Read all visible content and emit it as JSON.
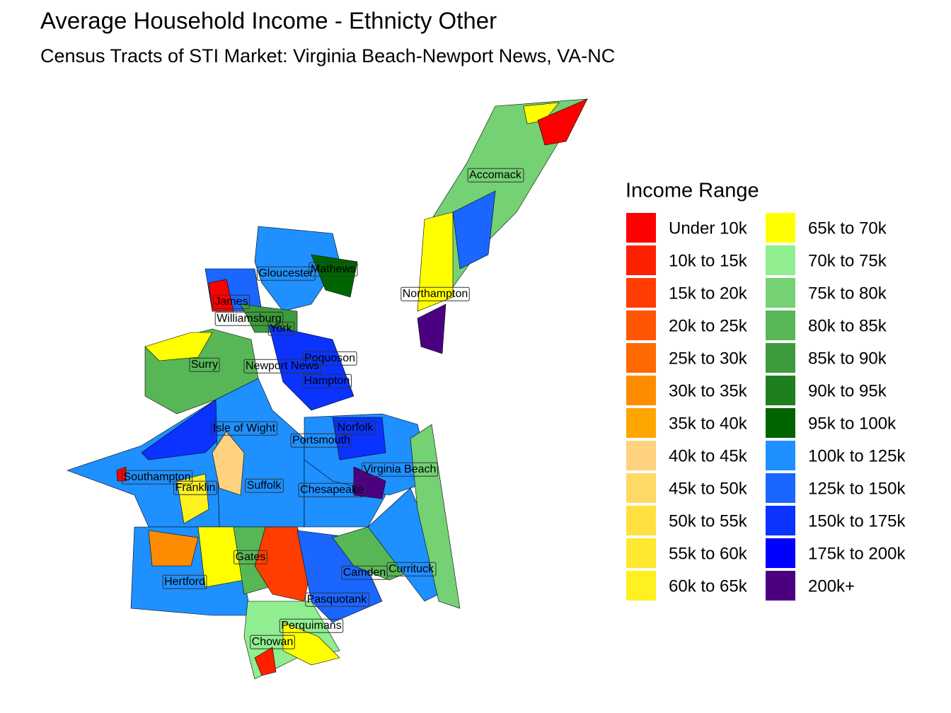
{
  "header": {
    "title": "Average Household Income - Ethnicty Other",
    "subtitle": "Census Tracts of STI Market: Virginia Beach-Newport News, VA-NC"
  },
  "legend": {
    "title": "Income Range",
    "items": [
      {
        "label": "Under 10k",
        "color": "#FF0000"
      },
      {
        "label": "10k to 15k",
        "color": "#FF2000"
      },
      {
        "label": "15k to 20k",
        "color": "#FF3D00"
      },
      {
        "label": "20k to 25k",
        "color": "#FF5500"
      },
      {
        "label": "25k to 30k",
        "color": "#FF6A00"
      },
      {
        "label": "30k to 35k",
        "color": "#FF8C00"
      },
      {
        "label": "35k to 40k",
        "color": "#FFA500"
      },
      {
        "label": "40k to 45k",
        "color": "#FFD27F"
      },
      {
        "label": "45k to 50k",
        "color": "#FFD966"
      },
      {
        "label": "50k to 55k",
        "color": "#FFE040"
      },
      {
        "label": "55k to 60k",
        "color": "#FFE830"
      },
      {
        "label": "60k to 65k",
        "color": "#FFF020"
      },
      {
        "label": "65k to 70k",
        "color": "#FFFF00"
      },
      {
        "label": "70k to 75k",
        "color": "#90EE90"
      },
      {
        "label": "75k to 80k",
        "color": "#74D174"
      },
      {
        "label": "80k to 85k",
        "color": "#57B757"
      },
      {
        "label": "85k to 90k",
        "color": "#3C9B3C"
      },
      {
        "label": "90k to 95k",
        "color": "#1E7F1E"
      },
      {
        "label": "95k to 100k",
        "color": "#006400"
      },
      {
        "label": "100k to 125k",
        "color": "#1E90FF"
      },
      {
        "label": "125k to 150k",
        "color": "#1A66FF"
      },
      {
        "label": "150k to 175k",
        "color": "#0A33FF"
      },
      {
        "label": "175k to 200k",
        "color": "#0000FF"
      },
      {
        "label": "200k+",
        "color": "#4B0082"
      }
    ]
  },
  "map": {
    "labels": [
      "Accomack",
      "Gloucester",
      "Mathews",
      "James",
      "Williamsburg",
      "York",
      "Northampton",
      "Surry",
      "Poquoson",
      "Newport News",
      "Hampton",
      "Isle of Wight",
      "Norfolk",
      "Portsmouth",
      "Virginia Beach",
      "Southampton",
      "Franklin",
      "Suffolk",
      "Chesapeake",
      "Gates",
      "Camden",
      "Currituck",
      "Hertford",
      "Pasquotank",
      "Perquimans",
      "Chowan"
    ]
  }
}
